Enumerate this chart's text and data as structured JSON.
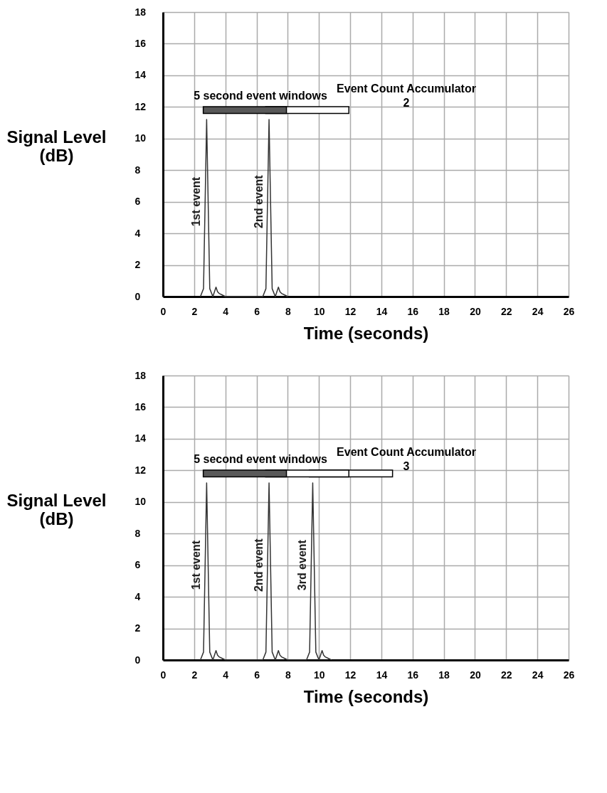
{
  "chart_data": [
    {
      "type": "line",
      "xlabel": "Time (seconds)",
      "ylabel": "Signal Level (dB)",
      "xlim": [
        0,
        26
      ],
      "ylim": [
        0,
        18
      ],
      "xticks": [
        0,
        2,
        4,
        6,
        8,
        10,
        12,
        14,
        16,
        18,
        20,
        22,
        24,
        26
      ],
      "yticks": [
        0,
        2,
        4,
        6,
        8,
        10,
        12,
        14,
        16,
        18
      ],
      "grid": true,
      "line_style": "solid",
      "series": [
        {
          "color": "#333333",
          "x": [
            2.4,
            2.6,
            2.8,
            3.0,
            3.2,
            3.4,
            3.5,
            3.6,
            3.8,
            4.0,
            6.4,
            6.6,
            6.8,
            7.0,
            7.2,
            7.4,
            7.5,
            7.6,
            7.8,
            8.0
          ],
          "values": [
            0,
            0.5,
            11.2,
            0.5,
            0,
            0.6,
            0.3,
            0.2,
            0.1,
            0,
            0,
            0.5,
            11.2,
            0.5,
            0,
            0.6,
            0.3,
            0.2,
            0.1,
            0
          ]
        },
        {
          "color": "#595959",
          "x": [
            2.8,
            7.7
          ],
          "values": [
            11.8,
            11.8
          ]
        },
        {
          "color": "#ffffff",
          "x": [
            6.8,
            11.7
          ],
          "values": [
            11.8,
            11.8
          ]
        }
      ],
      "annotations": [
        "5 second event windows",
        "Event Count Accumulator",
        "2",
        {
          "text": "1st event",
          "x": 2.8,
          "y": 6
        },
        {
          "text": "2nd event",
          "x": 6.8,
          "y": 6
        }
      ]
    },
    {
      "type": "line",
      "xlabel": "Time (seconds)",
      "ylabel": "Signal Level (dB)",
      "xlim": [
        0,
        26
      ],
      "ylim": [
        0,
        18
      ],
      "xticks": [
        0,
        2,
        4,
        6,
        8,
        10,
        12,
        14,
        16,
        18,
        20,
        22,
        24,
        26
      ],
      "yticks": [
        0,
        2,
        4,
        6,
        8,
        10,
        12,
        14,
        16,
        18
      ],
      "grid": true,
      "line_style": "solid",
      "series": [
        {
          "color": "#333333",
          "x": [
            2.4,
            2.6,
            2.8,
            3.0,
            3.2,
            3.4,
            3.5,
            3.6,
            3.8,
            4.0,
            6.4,
            6.6,
            6.8,
            7.0,
            7.2,
            7.4,
            7.5,
            7.6,
            7.8,
            8.0,
            9.2,
            9.4,
            9.6,
            9.8,
            10.0,
            10.2,
            10.3,
            10.4,
            10.6,
            10.8
          ],
          "values": [
            0,
            0.5,
            11.2,
            0.5,
            0,
            0.6,
            0.3,
            0.2,
            0.1,
            0,
            0,
            0.5,
            11.2,
            0.5,
            0,
            0.6,
            0.3,
            0.2,
            0.1,
            0,
            0,
            0.5,
            11.2,
            0.5,
            0,
            0.6,
            0.3,
            0.2,
            0.1,
            0
          ]
        },
        {
          "color": "#595959",
          "x": [
            2.8,
            7.7
          ],
          "values": [
            11.8,
            11.8
          ]
        },
        {
          "color": "#ffffff",
          "x": [
            6.8,
            11.7
          ],
          "values": [
            11.8,
            11.8
          ]
        },
        {
          "color": "#ffffff",
          "x": [
            9.6,
            14.5
          ],
          "values": [
            11.8,
            11.8
          ]
        }
      ],
      "annotations": [
        "5 second event windows",
        "Event Count Accumulator",
        "3",
        {
          "text": "1st event",
          "x": 2.8,
          "y": 6
        },
        {
          "text": "2nd event",
          "x": 6.8,
          "y": 6
        },
        {
          "text": "3rd event",
          "x": 9.6,
          "y": 6
        }
      ]
    }
  ]
}
